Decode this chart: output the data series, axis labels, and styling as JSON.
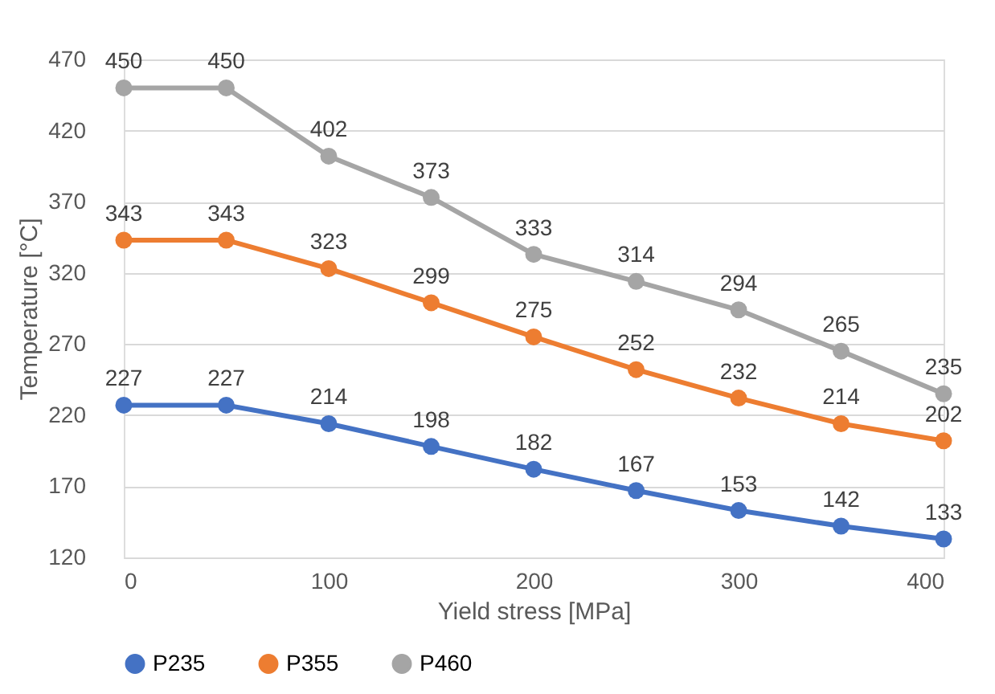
{
  "chart_data": {
    "type": "line",
    "xlabel": "Yield stress [MPa]",
    "ylabel": "Temperature [°C]",
    "x": [
      0,
      50,
      100,
      150,
      200,
      250,
      300,
      350,
      400
    ],
    "series": [
      {
        "name": "P235",
        "color": "#4472c4",
        "values": [
          227,
          227,
          214,
          198,
          182,
          167,
          153,
          142,
          133
        ]
      },
      {
        "name": "P355",
        "color": "#ed7d31",
        "values": [
          343,
          343,
          323,
          299,
          275,
          252,
          232,
          214,
          202
        ]
      },
      {
        "name": "P460",
        "color": "#a5a5a5",
        "values": [
          450,
          450,
          402,
          373,
          333,
          314,
          294,
          265,
          235
        ]
      }
    ],
    "xlim": [
      0,
      400
    ],
    "xticks": [
      0,
      100,
      200,
      300,
      400
    ],
    "ylim": [
      120,
      470
    ],
    "yticks": [
      120,
      170,
      220,
      270,
      320,
      370,
      420,
      470
    ],
    "grid": "y",
    "legend": "bottom",
    "marker": "circle",
    "line_style": "solid",
    "data_labels": true
  }
}
